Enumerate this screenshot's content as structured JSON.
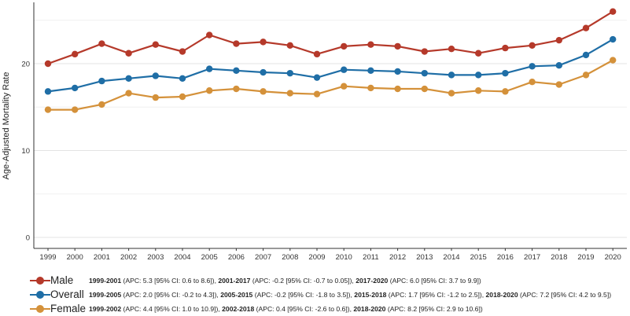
{
  "chart_data": {
    "type": "line",
    "ylabel": "Age-Adjusted Mortality Rate",
    "xlabel": "",
    "ylim": [
      0,
      26
    ],
    "yticks": [
      0,
      10,
      20
    ],
    "grid": true,
    "legend_position": "bottom",
    "x": [
      "1999",
      "2000",
      "2001",
      "2002",
      "2003",
      "2004",
      "2005",
      "2006",
      "2007",
      "2008",
      "2009",
      "2010",
      "2011",
      "2012",
      "2013",
      "2014",
      "2015",
      "2016",
      "2017",
      "2018",
      "2019",
      "2020"
    ],
    "series": [
      {
        "name": "Male",
        "color": "#b5392a",
        "values": [
          20.0,
          21.1,
          22.3,
          21.2,
          22.2,
          21.4,
          23.3,
          22.3,
          22.5,
          22.1,
          21.1,
          22.0,
          22.2,
          22.0,
          21.4,
          21.7,
          21.2,
          21.8,
          22.1,
          22.7,
          24.1,
          26.0
        ],
        "legend_segments": [
          {
            "period": "1999-2001",
            "detail": "(APC: 5.3 [95% CI: 0.6 to 8.6]),"
          },
          {
            "period": "2001-2017",
            "detail": "(APC: -0.2 [95% CI: -0.7 to 0.05]),"
          },
          {
            "period": "2017-2020",
            "detail": "(APC: 6.0 [95% CI: 3.7 to 9.9])"
          }
        ]
      },
      {
        "name": "Overall",
        "color": "#1f6ea6",
        "values": [
          16.8,
          17.2,
          18.0,
          18.3,
          18.6,
          18.3,
          19.4,
          19.2,
          19.0,
          18.9,
          18.4,
          19.3,
          19.2,
          19.1,
          18.9,
          18.7,
          18.7,
          18.9,
          19.7,
          19.8,
          21.0,
          22.8
        ],
        "legend_segments": [
          {
            "period": "1999-2005",
            "detail": "(APC: 2.0 [95% CI: -0.2 to 4.3]),"
          },
          {
            "period": "2005-2015",
            "detail": "(APC: -0.2 [95% CI: -1.8 to 3.5]),"
          },
          {
            "period": "2015-2018",
            "detail": "(APC: 1.7 [95% CI: -1.2 to 2.5]),"
          },
          {
            "period": "2018-2020",
            "detail": "(APC: 7.2 [95% CI: 4.2 to 9.5])"
          }
        ]
      },
      {
        "name": "Female",
        "color": "#d4913a",
        "values": [
          14.7,
          14.7,
          15.3,
          16.6,
          16.1,
          16.2,
          16.9,
          17.1,
          16.8,
          16.6,
          16.5,
          17.4,
          17.2,
          17.1,
          17.1,
          16.6,
          16.9,
          16.8,
          17.9,
          17.6,
          18.7,
          20.4
        ],
        "legend_segments": [
          {
            "period": "1999-2002",
            "detail": "(APC: 4.4 [95% CI: 1.0 to 10.9]),"
          },
          {
            "period": "2002-2018",
            "detail": "(APC: 0.4 [95% CI: -2.6 to 0.6]),"
          },
          {
            "period": "2018-2020",
            "detail": "(APC: 8.2 [95% CI: 2.9 to 10.6])"
          }
        ]
      }
    ]
  }
}
